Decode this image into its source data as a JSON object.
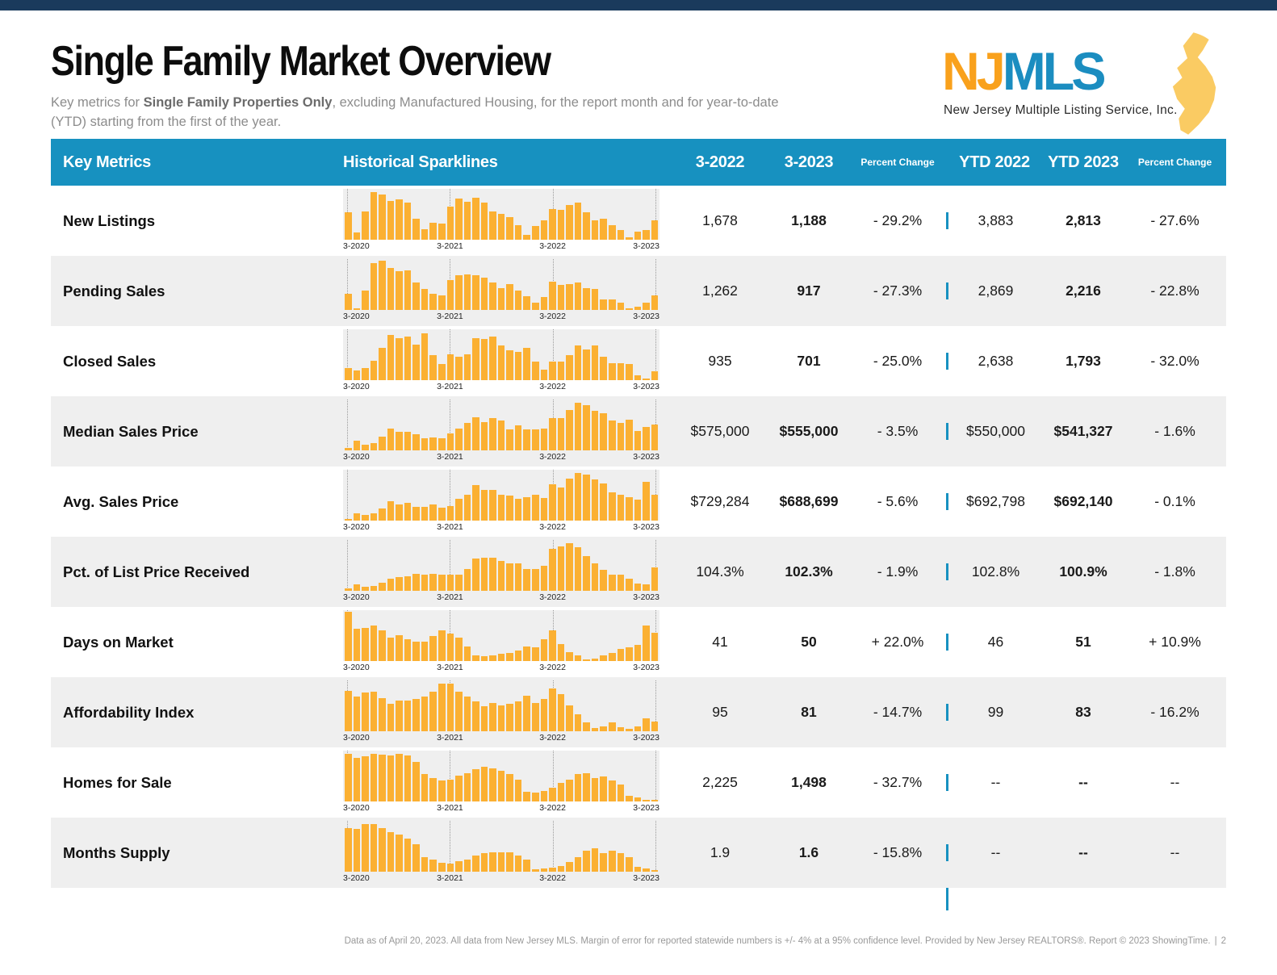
{
  "page": {
    "title": "Single Family Market Overview",
    "subtitle_prefix": "Key metrics for ",
    "subtitle_bold": "Single Family Properties Only",
    "subtitle_suffix": ", excluding Manufactured Housing, for the report month and for year-to-date (YTD) starting from the first of the year."
  },
  "logo": {
    "nj": "NJ",
    "mls": "MLS",
    "tagline": "New Jersey Multiple Listing Service, Inc."
  },
  "table": {
    "headers": {
      "key_metrics": "Key Metrics",
      "historical_sparklines": "Historical Sparklines",
      "m_2022": "3-2022",
      "m_2023": "3-2023",
      "percent_change_month": "Percent Change",
      "ytd_2022": "YTD 2022",
      "ytd_2023": "YTD 2023",
      "percent_change_ytd": "Percent Change"
    },
    "axis_labels": [
      "3-2020",
      "3-2021",
      "3-2022",
      "3-2023"
    ],
    "rows": [
      {
        "label": "New Listings",
        "m2022": "1,678",
        "m2023": "1,188",
        "pct_m": "- 29.2%",
        "ytd2022": "3,883",
        "ytd2023": "2,813",
        "pct_ytd": "- 27.6%"
      },
      {
        "label": "Pending Sales",
        "m2022": "1,262",
        "m2023": "917",
        "pct_m": "- 27.3%",
        "ytd2022": "2,869",
        "ytd2023": "2,216",
        "pct_ytd": "- 22.8%"
      },
      {
        "label": "Closed Sales",
        "m2022": "935",
        "m2023": "701",
        "pct_m": "- 25.0%",
        "ytd2022": "2,638",
        "ytd2023": "1,793",
        "pct_ytd": "- 32.0%"
      },
      {
        "label": "Median Sales Price",
        "m2022": "$575,000",
        "m2023": "$555,000",
        "pct_m": "- 3.5%",
        "ytd2022": "$550,000",
        "ytd2023": "$541,327",
        "pct_ytd": "- 1.6%"
      },
      {
        "label": "Avg. Sales Price",
        "m2022": "$729,284",
        "m2023": "$688,699",
        "pct_m": "- 5.6%",
        "ytd2022": "$692,798",
        "ytd2023": "$692,140",
        "pct_ytd": "- 0.1%"
      },
      {
        "label": "Pct. of List Price Received",
        "m2022": "104.3%",
        "m2023": "102.3%",
        "pct_m": "- 1.9%",
        "ytd2022": "102.8%",
        "ytd2023": "100.9%",
        "pct_ytd": "- 1.8%"
      },
      {
        "label": "Days on Market",
        "m2022": "41",
        "m2023": "50",
        "pct_m": "+ 22.0%",
        "ytd2022": "46",
        "ytd2023": "51",
        "pct_ytd": "+ 10.9%"
      },
      {
        "label": "Affordability Index",
        "m2022": "95",
        "m2023": "81",
        "pct_m": "- 14.7%",
        "ytd2022": "99",
        "ytd2023": "83",
        "pct_ytd": "- 16.2%"
      },
      {
        "label": "Homes for Sale",
        "m2022": "2,225",
        "m2023": "1,498",
        "pct_m": "- 32.7%",
        "ytd2022": "--",
        "ytd2023": "--",
        "pct_ytd": "--"
      },
      {
        "label": "Months Supply",
        "m2022": "1.9",
        "m2023": "1.6",
        "pct_m": "- 15.8%",
        "ytd2022": "--",
        "ytd2023": "--",
        "pct_ytd": "--"
      }
    ]
  },
  "chart_data": [
    {
      "metric": "New Listings",
      "type": "bar",
      "x_ticks": [
        "3-2020",
        "3-2021",
        "3-2022",
        "3-2023"
      ],
      "values_relative": [
        0.55,
        0.15,
        0.58,
        0.97,
        0.92,
        0.78,
        0.82,
        0.75,
        0.42,
        0.22,
        0.35,
        0.33,
        0.68,
        0.83,
        0.77,
        0.85,
        0.75,
        0.58,
        0.52,
        0.46,
        0.3,
        0.1,
        0.28,
        0.4,
        0.62,
        0.6,
        0.7,
        0.75,
        0.55,
        0.4,
        0.43,
        0.3,
        0.2,
        0.05,
        0.17,
        0.2,
        0.4
      ]
    },
    {
      "metric": "Pending Sales",
      "type": "bar",
      "x_ticks": [
        "3-2020",
        "3-2021",
        "3-2022",
        "3-2023"
      ],
      "values_relative": [
        0.32,
        0.04,
        0.4,
        0.95,
        1.0,
        0.85,
        0.78,
        0.8,
        0.55,
        0.42,
        0.32,
        0.3,
        0.6,
        0.7,
        0.72,
        0.71,
        0.65,
        0.55,
        0.45,
        0.52,
        0.4,
        0.28,
        0.15,
        0.27,
        0.57,
        0.5,
        0.53,
        0.56,
        0.45,
        0.42,
        0.22,
        0.22,
        0.15,
        0.04,
        0.06,
        0.15,
        0.3
      ]
    },
    {
      "metric": "Closed Sales",
      "type": "bar",
      "x_ticks": [
        "3-2020",
        "3-2021",
        "3-2022",
        "3-2023"
      ],
      "values_relative": [
        0.25,
        0.2,
        0.25,
        0.4,
        0.65,
        0.92,
        0.85,
        0.88,
        0.72,
        0.95,
        0.5,
        0.32,
        0.52,
        0.47,
        0.52,
        0.85,
        0.84,
        0.88,
        0.7,
        0.6,
        0.57,
        0.65,
        0.38,
        0.22,
        0.37,
        0.38,
        0.5,
        0.7,
        0.63,
        0.7,
        0.48,
        0.35,
        0.35,
        0.33,
        0.1,
        0.03,
        0.18
      ]
    },
    {
      "metric": "Median Sales Price",
      "type": "bar",
      "x_ticks": [
        "3-2020",
        "3-2021",
        "3-2022",
        "3-2023"
      ],
      "values_relative": [
        0.05,
        0.2,
        0.12,
        0.14,
        0.28,
        0.45,
        0.37,
        0.38,
        0.33,
        0.25,
        0.26,
        0.24,
        0.35,
        0.44,
        0.55,
        0.68,
        0.58,
        0.65,
        0.6,
        0.42,
        0.5,
        0.42,
        0.42,
        0.45,
        0.65,
        0.65,
        0.82,
        0.97,
        0.92,
        0.8,
        0.75,
        0.6,
        0.55,
        0.62,
        0.4,
        0.48,
        0.53
      ]
    },
    {
      "metric": "Avg. Sales Price",
      "type": "bar",
      "x_ticks": [
        "3-2020",
        "3-2021",
        "3-2022",
        "3-2023"
      ],
      "values_relative": [
        0.04,
        0.15,
        0.12,
        0.15,
        0.25,
        0.4,
        0.33,
        0.36,
        0.28,
        0.28,
        0.32,
        0.27,
        0.3,
        0.45,
        0.52,
        0.72,
        0.62,
        0.63,
        0.52,
        0.51,
        0.44,
        0.48,
        0.52,
        0.46,
        0.74,
        0.68,
        0.85,
        0.97,
        0.93,
        0.83,
        0.75,
        0.58,
        0.52,
        0.48,
        0.42,
        0.78,
        0.52
      ]
    },
    {
      "metric": "Pct. of List Price Received",
      "type": "bar",
      "x_ticks": [
        "3-2020",
        "3-2021",
        "3-2022",
        "3-2023"
      ],
      "values_relative": [
        0.05,
        0.13,
        0.08,
        0.1,
        0.17,
        0.25,
        0.28,
        0.3,
        0.35,
        0.33,
        0.35,
        0.33,
        0.33,
        0.32,
        0.45,
        0.65,
        0.68,
        0.67,
        0.6,
        0.55,
        0.56,
        0.45,
        0.45,
        0.5,
        0.85,
        0.9,
        0.97,
        0.88,
        0.7,
        0.55,
        0.42,
        0.32,
        0.32,
        0.25,
        0.15,
        0.13,
        0.48
      ]
    },
    {
      "metric": "Days on Market",
      "type": "bar",
      "x_ticks": [
        "3-2020",
        "3-2021",
        "3-2022",
        "3-2023"
      ],
      "values_relative": [
        1.0,
        0.65,
        0.68,
        0.72,
        0.62,
        0.48,
        0.52,
        0.45,
        0.4,
        0.4,
        0.5,
        0.62,
        0.55,
        0.48,
        0.3,
        0.12,
        0.1,
        0.12,
        0.14,
        0.17,
        0.22,
        0.3,
        0.28,
        0.45,
        0.62,
        0.35,
        0.18,
        0.12,
        0.04,
        0.05,
        0.12,
        0.17,
        0.25,
        0.28,
        0.32,
        0.72,
        0.58
      ]
    },
    {
      "metric": "Affordability Index",
      "type": "bar",
      "x_ticks": [
        "3-2020",
        "3-2021",
        "3-2022",
        "3-2023"
      ],
      "values_relative": [
        0.82,
        0.7,
        0.78,
        0.8,
        0.67,
        0.55,
        0.62,
        0.63,
        0.65,
        0.7,
        0.8,
        0.97,
        0.97,
        0.8,
        0.7,
        0.6,
        0.5,
        0.58,
        0.52,
        0.55,
        0.6,
        0.72,
        0.58,
        0.65,
        0.87,
        0.75,
        0.52,
        0.35,
        0.18,
        0.07,
        0.1,
        0.18,
        0.08,
        0.05,
        0.1,
        0.27,
        0.2
      ]
    },
    {
      "metric": "Homes for Sale",
      "type": "bar",
      "x_ticks": [
        "3-2020",
        "3-2021",
        "3-2022",
        "3-2023"
      ],
      "values_relative": [
        0.97,
        0.88,
        0.92,
        0.97,
        0.95,
        0.93,
        0.97,
        0.93,
        0.8,
        0.55,
        0.48,
        0.43,
        0.45,
        0.53,
        0.58,
        0.65,
        0.7,
        0.67,
        0.63,
        0.55,
        0.45,
        0.2,
        0.18,
        0.22,
        0.28,
        0.38,
        0.45,
        0.55,
        0.57,
        0.48,
        0.5,
        0.42,
        0.35,
        0.12,
        0.08,
        0.04,
        0.02
      ]
    },
    {
      "metric": "Months Supply",
      "type": "bar",
      "x_ticks": [
        "3-2020",
        "3-2021",
        "3-2022",
        "3-2023"
      ],
      "values_relative": [
        0.88,
        0.87,
        0.97,
        0.96,
        0.88,
        0.8,
        0.75,
        0.68,
        0.55,
        0.3,
        0.25,
        0.18,
        0.17,
        0.22,
        0.25,
        0.32,
        0.38,
        0.4,
        0.4,
        0.4,
        0.33,
        0.25,
        0.05,
        0.06,
        0.08,
        0.12,
        0.2,
        0.3,
        0.42,
        0.47,
        0.38,
        0.43,
        0.38,
        0.3,
        0.1,
        0.07,
        0.03
      ]
    }
  ],
  "footer": {
    "text": "Data as of April 20, 2023. All data from New Jersey MLS. Margin of error for reported statewide numbers is +/- 4% at a 95% confidence level. Provided by New Jersey REALTORS®. Report © 2023 ShowingTime.",
    "separator": "|",
    "page": "2"
  },
  "colors": {
    "top_bar_navy": "#1a3a5c",
    "header_blue": "#1791c0",
    "divider_blue": "#1791c0",
    "bar_amber": "#FBB032",
    "row_alt_gray": "#efefef",
    "logo_nj_yellow": "#F9A11C",
    "logo_mls_blue": "#1B8DC0",
    "logo_state_yellow": "#FACB63"
  }
}
